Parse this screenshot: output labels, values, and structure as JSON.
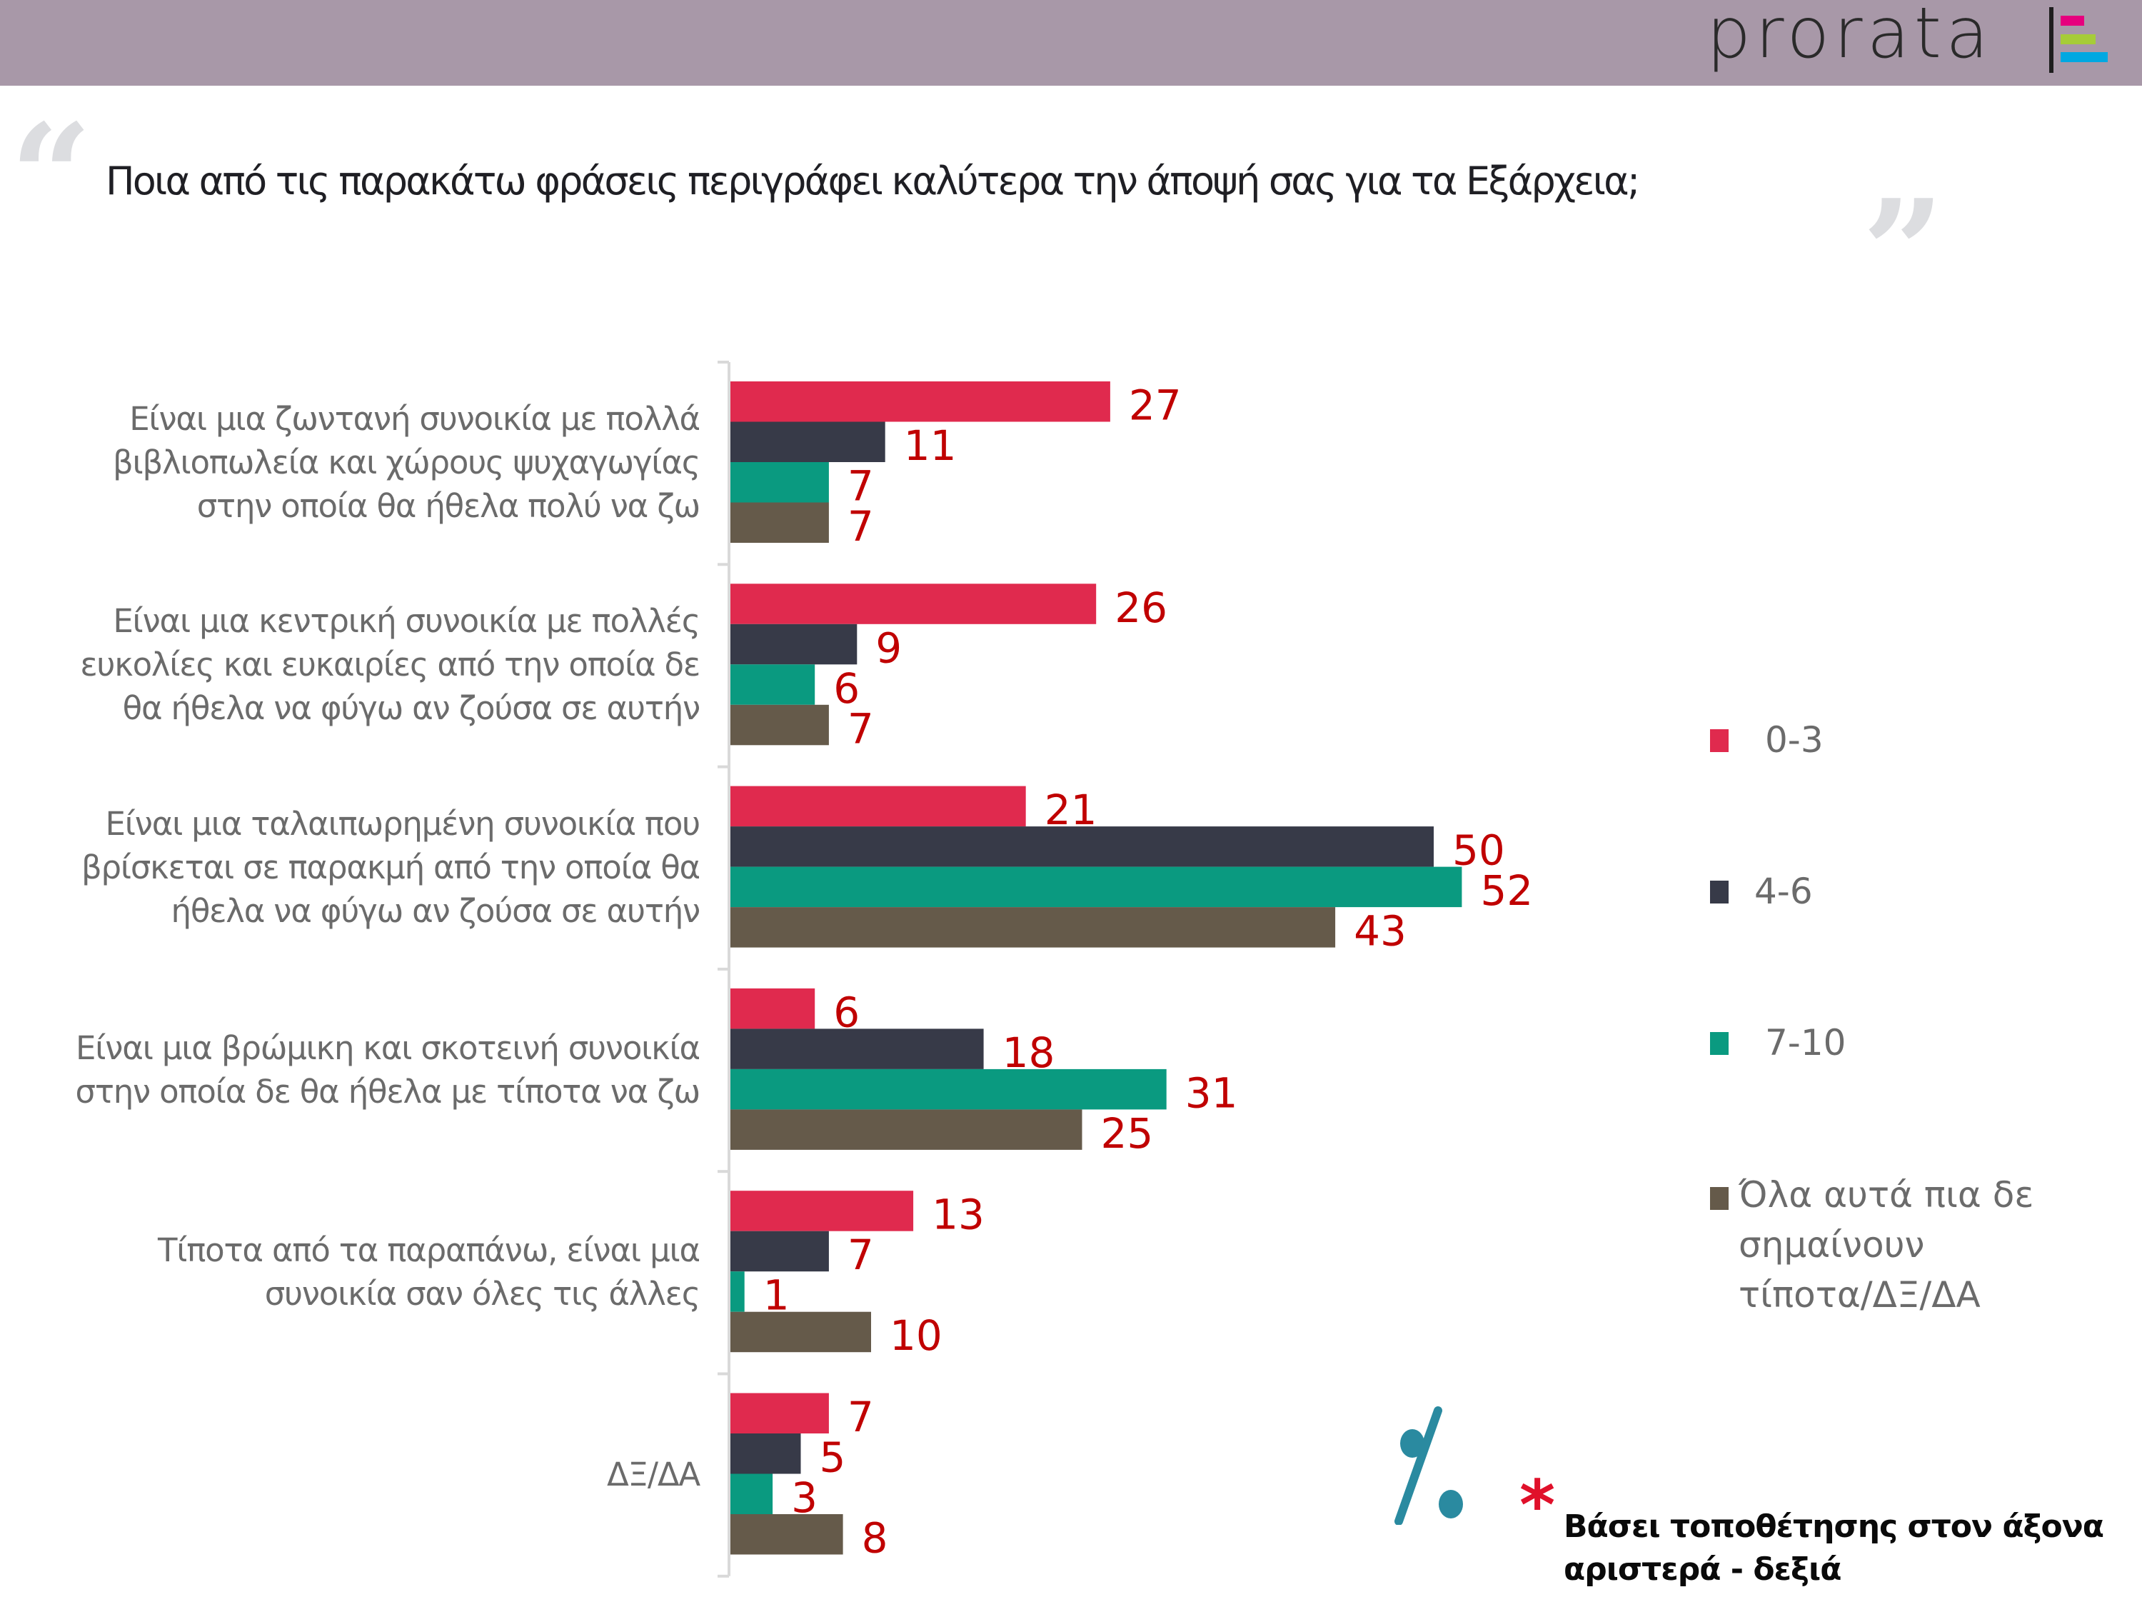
{
  "header": {
    "logo_text": "prorata",
    "logo_stripe_colors": [
      "#e6007e",
      "#a6cc38",
      "#00a8e1"
    ],
    "band_color": "#a898a8"
  },
  "title": {
    "open_quote": "“",
    "text": "Ποια από τις παρακάτω φράσεις περιγράφει καλύτερα την άποψή σας για τα Εξάρχεια;",
    "close_quote": "”"
  },
  "chart_data": {
    "type": "bar",
    "orientation": "horizontal",
    "title": "Ποια από τις παρακάτω φράσεις περιγράφει καλύτερα την άποψή σας για τα Εξάρχεια;",
    "xlabel": "",
    "ylabel": "",
    "xlim": [
      0,
      60
    ],
    "grid": false,
    "legend_position": "right",
    "label_color": "#c00000",
    "categories": [
      [
        "Είναι μια ζωντανή συνοικία με πολλά",
        "βιβλιοπωλεία και χώρους ψυχαγωγίας",
        "στην οποία θα ήθελα πολύ να ζω"
      ],
      [
        "Είναι μια κεντρική συνοικία με πολλές",
        "ευκολίες και ευκαιρίες από την οποία δε",
        "θα ήθελα να φύγω αν ζούσα σε αυτήν"
      ],
      [
        "Είναι μια ταλαιπωρημένη συνοικία που",
        "βρίσκεται σε παρακμή από την οποία θα",
        "ήθελα να φύγω αν ζούσα σε αυτήν"
      ],
      [
        "Είναι μια βρώμικη και σκοτεινή συνοικία",
        "στην οποία δε θα ήθελα με τίποτα να ζω"
      ],
      [
        "Τίποτα από τα παραπάνω, είναι μια",
        "συνοικία σαν όλες τις άλλες"
      ],
      [
        "ΔΞ/ΔΑ"
      ]
    ],
    "series": [
      {
        "name": "0-3",
        "color": "#e02a4e",
        "values": [
          27,
          26,
          21,
          6,
          13,
          7
        ]
      },
      {
        "name": "4-6",
        "color": "#373a48",
        "values": [
          11,
          9,
          50,
          18,
          7,
          5
        ]
      },
      {
        "name": "7-10",
        "color": "#0a9a80",
        "values": [
          7,
          6,
          52,
          31,
          1,
          3
        ]
      },
      {
        "name": "Όλα αυτά πια δε σημαίνουν τίποτα/ΔΞ/ΔΑ",
        "color": "#655a4a",
        "values": [
          7,
          7,
          43,
          25,
          10,
          8
        ]
      }
    ]
  },
  "legend": {
    "items": [
      {
        "lines": [
          "0-3"
        ]
      },
      {
        "lines": [
          "4-6"
        ]
      },
      {
        "lines": [
          "7-10"
        ]
      },
      {
        "lines": [
          "Όλα αυτά πια δε",
          "σημαίνουν",
          "τίποτα/ΔΞ/ΔΑ"
        ]
      }
    ]
  },
  "footnote": {
    "icon": "percent-icon",
    "icon_color": "#2a8aa0",
    "asterisk": "*",
    "asterisk_color": "#e0102a",
    "lines": [
      "Βάσει τοποθέτησης στον άξονα",
      "αριστερά - δεξιά"
    ]
  }
}
